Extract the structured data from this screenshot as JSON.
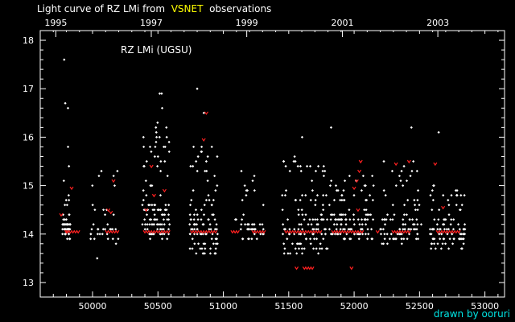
{
  "title": {
    "prefix": "Light curve of RZ LMi from",
    "source": "VSNET",
    "suffix": "observations"
  },
  "credit": "drawn by ooruri",
  "colors": {
    "background": "#000000",
    "axes": "#ffffff",
    "visual_points": "#ffffff",
    "ccd_points": "#ff2020",
    "title_highlight": "#ffff00",
    "credit": "#00e5e5"
  },
  "chart_data": {
    "type": "scatter",
    "title": "Light curve of RZ LMi from VSNET observations",
    "annotation": "RZ LMi (UGSU)",
    "xlim": [
      49600,
      53150
    ],
    "ylim": [
      18.2,
      12.7
    ],
    "y_inverted": true,
    "grid": false,
    "x_ticks": [
      50000,
      50500,
      51000,
      51500,
      52000,
      52500,
      53000
    ],
    "x_tick_labels": [
      "50000",
      "50500",
      "51000",
      "51500",
      "52000",
      "52500",
      "53000"
    ],
    "y_ticks": [
      13,
      14,
      15,
      16,
      17,
      18
    ],
    "y_tick_labels": [
      "13",
      "14",
      "15",
      "16",
      "17",
      "18"
    ],
    "top_axis": {
      "ticks": [
        49719,
        50449,
        51179,
        51910,
        52640
      ],
      "labels": [
        "1995",
        "1997",
        "1999",
        "2001",
        "2003"
      ]
    },
    "series": [
      {
        "marker": "diamond",
        "seasons": [
          {
            "start": 49770,
            "end": 49830,
            "n": 55,
            "bright": 13.9,
            "mid": 14.3,
            "faint": 15.4,
            "tail": [
              15.8,
              16.6,
              16.7,
              17.6
            ]
          },
          {
            "start": 49980,
            "end": 50200,
            "n": 35,
            "bright": 13.8,
            "mid": 14.2,
            "faint": 15.3,
            "tail": [
              13.5
            ]
          },
          {
            "start": 50380,
            "end": 50590,
            "n": 110,
            "bright": 13.9,
            "mid": 14.6,
            "faint": 16.4,
            "tail": [
              16.9,
              16.9,
              16.6
            ]
          },
          {
            "start": 50740,
            "end": 50960,
            "n": 100,
            "bright": 13.55,
            "mid": 14.5,
            "faint": 15.9,
            "tail": [
              16.5,
              17.0
            ]
          },
          {
            "start": 51090,
            "end": 51320,
            "n": 45,
            "bright": 13.9,
            "mid": 14.3,
            "faint": 15.3,
            "tail": []
          },
          {
            "start": 51450,
            "end": 51800,
            "n": 120,
            "bright": 13.6,
            "mid": 14.5,
            "faint": 15.6,
            "tail": [
              16.0
            ]
          },
          {
            "start": 51810,
            "end": 52150,
            "n": 115,
            "bright": 13.9,
            "mid": 14.4,
            "faint": 15.2,
            "tail": [
              16.2
            ]
          },
          {
            "start": 52200,
            "end": 52520,
            "n": 90,
            "bright": 13.8,
            "mid": 14.4,
            "faint": 15.5,
            "tail": [
              16.2
            ]
          },
          {
            "start": 52580,
            "end": 52850,
            "n": 95,
            "bright": 13.7,
            "mid": 14.2,
            "faint": 15.0,
            "tail": [
              16.1
            ]
          }
        ]
      },
      {
        "marker": "v",
        "points": [
          [
            49800,
            14.05
          ],
          [
            49810,
            14.05
          ],
          [
            49830,
            14.05
          ],
          [
            49850,
            14.05
          ],
          [
            49870,
            14.05
          ],
          [
            49890,
            14.05
          ],
          [
            49760,
            14.4
          ],
          [
            49840,
            14.95
          ],
          [
            50110,
            14.05
          ],
          [
            50130,
            14.05
          ],
          [
            50150,
            14.05
          ],
          [
            50170,
            14.05
          ],
          [
            50190,
            14.05
          ],
          [
            50120,
            14.5
          ],
          [
            50140,
            14.45
          ],
          [
            50160,
            15.1
          ],
          [
            50400,
            14.05
          ],
          [
            50420,
            14.05
          ],
          [
            50440,
            14.05
          ],
          [
            50460,
            14.05
          ],
          [
            50480,
            14.05
          ],
          [
            50500,
            14.05
          ],
          [
            50520,
            14.05
          ],
          [
            50540,
            14.05
          ],
          [
            50560,
            14.05
          ],
          [
            50580,
            14.05
          ],
          [
            50410,
            14.5
          ],
          [
            50470,
            14.8
          ],
          [
            50550,
            14.9
          ],
          [
            50450,
            15.4
          ],
          [
            50760,
            14.05
          ],
          [
            50780,
            14.05
          ],
          [
            50800,
            14.05
          ],
          [
            50820,
            14.05
          ],
          [
            50840,
            14.05
          ],
          [
            50860,
            14.05
          ],
          [
            50880,
            14.05
          ],
          [
            50900,
            14.05
          ],
          [
            50920,
            14.05
          ],
          [
            50940,
            14.05
          ],
          [
            50850,
            15.95
          ],
          [
            50870,
            16.5
          ],
          [
            51070,
            14.05
          ],
          [
            51090,
            14.05
          ],
          [
            51110,
            14.05
          ],
          [
            51230,
            14.05
          ],
          [
            51250,
            14.05
          ],
          [
            51270,
            14.05
          ],
          [
            51290,
            14.05
          ],
          [
            51310,
            14.05
          ],
          [
            51560,
            13.3
          ],
          [
            51620,
            13.3
          ],
          [
            51640,
            13.3
          ],
          [
            51660,
            13.3
          ],
          [
            51680,
            13.3
          ],
          [
            51480,
            14.05
          ],
          [
            51500,
            14.05
          ],
          [
            51520,
            14.05
          ],
          [
            51540,
            14.05
          ],
          [
            51560,
            14.05
          ],
          [
            51580,
            14.05
          ],
          [
            51600,
            14.05
          ],
          [
            51620,
            14.05
          ],
          [
            51640,
            14.05
          ],
          [
            51660,
            14.05
          ],
          [
            51680,
            14.05
          ],
          [
            51700,
            14.05
          ],
          [
            51720,
            14.05
          ],
          [
            51740,
            14.05
          ],
          [
            51980,
            13.3
          ],
          [
            51840,
            14.05
          ],
          [
            51860,
            14.05
          ],
          [
            51880,
            14.05
          ],
          [
            51900,
            14.05
          ],
          [
            51920,
            14.05
          ],
          [
            51940,
            14.05
          ],
          [
            51960,
            14.05
          ],
          [
            51980,
            14.05
          ],
          [
            52000,
            14.05
          ],
          [
            52020,
            14.05
          ],
          [
            52040,
            14.05
          ],
          [
            52060,
            14.05
          ],
          [
            52030,
            14.5
          ],
          [
            52000,
            14.95
          ],
          [
            52020,
            15.1
          ],
          [
            52040,
            15.3
          ],
          [
            52050,
            15.5
          ],
          [
            52180,
            14.05
          ],
          [
            52300,
            14.05
          ],
          [
            52320,
            14.05
          ],
          [
            52340,
            14.05
          ],
          [
            52360,
            14.05
          ],
          [
            52380,
            14.05
          ],
          [
            52400,
            14.05
          ],
          [
            52420,
            14.05
          ],
          [
            52320,
            15.45
          ],
          [
            52420,
            15.5
          ],
          [
            52640,
            14.05
          ],
          [
            52660,
            14.05
          ],
          [
            52680,
            14.05
          ],
          [
            52700,
            14.05
          ],
          [
            52720,
            14.05
          ],
          [
            52740,
            14.05
          ],
          [
            52760,
            14.05
          ],
          [
            52780,
            14.05
          ],
          [
            52800,
            14.05
          ],
          [
            52680,
            14.55
          ],
          [
            52620,
            15.45
          ]
        ]
      }
    ]
  }
}
